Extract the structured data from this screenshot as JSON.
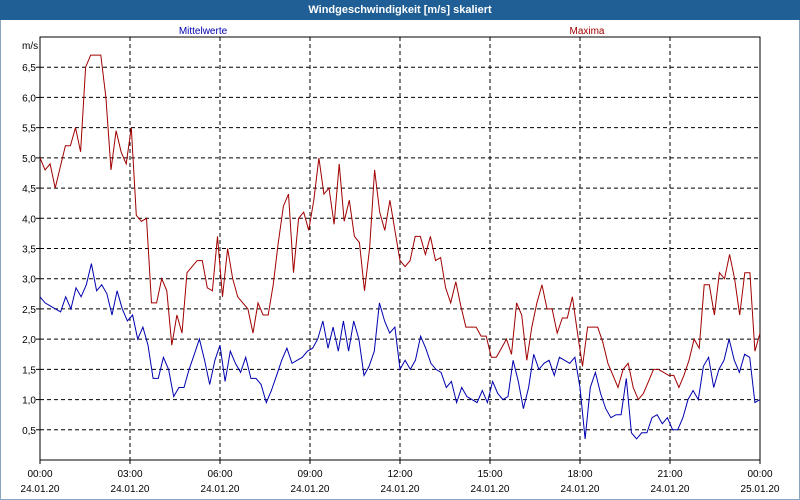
{
  "window": {
    "title": "Windgeschwindigkeit [m/s] skaliert"
  },
  "chart_data": {
    "type": "line",
    "title": "Windgeschwindigkeit [m/s] skaliert",
    "ylabel": "m/s",
    "ylim": [
      0,
      7.0
    ],
    "yticks": [
      "0,5",
      "1,0",
      "1,5",
      "2,0",
      "2,5",
      "3,0",
      "3,5",
      "4,0",
      "4,5",
      "5,0",
      "5,5",
      "6,0",
      "6,5"
    ],
    "xlim_hours": [
      0,
      24
    ],
    "xticks": [
      {
        "time": "00:00",
        "date": "24.01.20"
      },
      {
        "time": "03:00",
        "date": "24.01.20"
      },
      {
        "time": "06:00",
        "date": "24.01.20"
      },
      {
        "time": "09:00",
        "date": "24.01.20"
      },
      {
        "time": "12:00",
        "date": "24.01.20"
      },
      {
        "time": "15:00",
        "date": "24.01.20"
      },
      {
        "time": "18:00",
        "date": "24.01.20"
      },
      {
        "time": "21:00",
        "date": "24.01.20"
      },
      {
        "time": "00:00",
        "date": "25.01.20"
      }
    ],
    "grid": true,
    "series": [
      {
        "name": "Mittelwerte",
        "color": "#0000b0",
        "values": [
          2.7,
          2.6,
          2.55,
          2.5,
          2.45,
          2.7,
          2.5,
          2.85,
          2.7,
          2.9,
          3.25,
          2.8,
          2.9,
          2.75,
          2.4,
          2.8,
          2.5,
          2.3,
          2.4,
          2.0,
          2.2,
          1.9,
          1.35,
          1.35,
          1.7,
          1.5,
          1.05,
          1.2,
          1.2,
          1.5,
          1.75,
          2.0,
          1.65,
          1.25,
          1.65,
          1.9,
          1.3,
          1.8,
          1.6,
          1.45,
          1.7,
          1.35,
          1.35,
          1.25,
          0.95,
          1.15,
          1.4,
          1.65,
          1.85,
          1.6,
          1.65,
          1.7,
          1.8,
          1.85,
          2.0,
          2.3,
          1.85,
          2.2,
          1.8,
          2.3,
          1.8,
          2.3,
          2.0,
          1.4,
          1.55,
          1.8,
          2.6,
          2.3,
          2.1,
          2.2,
          1.5,
          1.65,
          1.5,
          1.65,
          2.05,
          1.85,
          1.6,
          1.5,
          1.45,
          1.2,
          1.3,
          0.95,
          1.2,
          1.05,
          1.0,
          0.95,
          1.15,
          0.95,
          1.3,
          1.1,
          1.0,
          1.05,
          1.65,
          1.3,
          0.85,
          1.2,
          1.75,
          1.5,
          1.6,
          1.65,
          1.4,
          1.7,
          1.65,
          1.6,
          1.7,
          1.2,
          0.35,
          1.2,
          1.45,
          1.1,
          0.85,
          0.7,
          0.75,
          0.75,
          1.35,
          0.45,
          0.35,
          0.45,
          0.45,
          0.7,
          0.75,
          0.6,
          0.7,
          0.5,
          0.5,
          0.7,
          1.0,
          1.15,
          1.0,
          1.55,
          1.7,
          1.2,
          1.5,
          1.65,
          2.0,
          1.65,
          1.45,
          1.75,
          1.7,
          0.95,
          1.0
        ]
      },
      {
        "name": "Maxima",
        "color": "#a00000",
        "values": [
          5.0,
          4.8,
          4.9,
          4.5,
          4.85,
          5.2,
          5.2,
          5.5,
          5.1,
          6.5,
          6.7,
          6.7,
          6.7,
          6.0,
          4.8,
          5.45,
          5.1,
          4.9,
          5.5,
          4.05,
          3.95,
          4.0,
          2.6,
          2.6,
          3.0,
          2.8,
          1.9,
          2.4,
          2.1,
          3.1,
          3.2,
          3.3,
          3.3,
          2.85,
          2.8,
          3.7,
          2.7,
          3.5,
          3.0,
          2.7,
          2.6,
          2.5,
          2.1,
          2.6,
          2.4,
          2.4,
          2.9,
          3.6,
          4.2,
          4.4,
          3.1,
          4.0,
          4.1,
          3.8,
          4.3,
          5.0,
          4.4,
          4.5,
          3.9,
          4.9,
          3.95,
          4.3,
          3.7,
          3.6,
          2.8,
          3.5,
          4.8,
          4.1,
          3.8,
          4.3,
          3.8,
          3.3,
          3.2,
          3.3,
          3.7,
          3.7,
          3.4,
          3.7,
          3.3,
          3.35,
          2.85,
          2.6,
          2.95,
          2.55,
          2.2,
          2.2,
          2.2,
          2.05,
          2.05,
          1.7,
          1.7,
          1.85,
          2.0,
          1.75,
          2.6,
          2.4,
          1.65,
          2.2,
          2.6,
          2.9,
          2.5,
          2.5,
          2.1,
          2.35,
          2.35,
          2.7,
          2.1,
          1.55,
          2.2,
          2.2,
          2.2,
          1.95,
          1.6,
          1.4,
          1.2,
          1.5,
          1.6,
          1.2,
          1.0,
          1.1,
          1.3,
          1.5,
          1.5,
          1.45,
          1.4,
          1.4,
          1.2,
          1.4,
          1.65,
          2.0,
          1.85,
          2.9,
          2.9,
          2.4,
          3.1,
          3.0,
          3.4,
          3.0,
          2.4,
          3.1,
          3.1,
          1.8,
          2.1
        ]
      }
    ]
  }
}
